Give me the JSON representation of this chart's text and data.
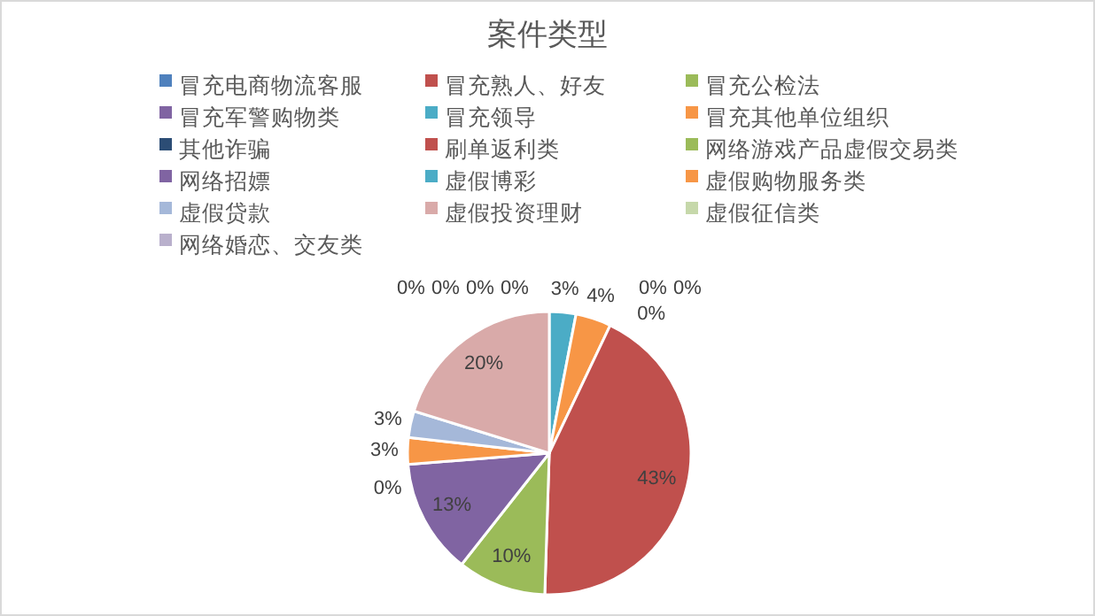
{
  "chart_data": {
    "type": "pie",
    "title": "案件类型",
    "categories": [
      "冒充电商物流客服",
      "冒充熟人、好友",
      "冒充公检法",
      "冒充军警购物类",
      "冒充领导",
      "冒充其他单位组织",
      "其他诈骗",
      "刷单返利类",
      "网络游戏产品虚假交易类",
      "网络招嫖",
      "虚假博彩",
      "虚假购物服务类",
      "虚假贷款",
      "虚假投资理财",
      "虚假征信类",
      "网络婚恋、交友类"
    ],
    "values": [
      0,
      0,
      0,
      0,
      3,
      4,
      0,
      43,
      10,
      13,
      0,
      3,
      3,
      20,
      0,
      0
    ],
    "colors": [
      "#4f81bd",
      "#c0504d",
      "#9bbb59",
      "#8064a2",
      "#4bacc6",
      "#f79646",
      "#2c4d75",
      "#c0504d",
      "#9bbb59",
      "#8064a2",
      "#4bacc6",
      "#f79646",
      "#a5b8d9",
      "#d9aaa9",
      "#c6d8aa",
      "#b9b0cc"
    ],
    "value_labels": [
      "0%",
      "0%",
      "0%",
      "0%",
      "3%",
      "4%",
      "0%",
      "43%",
      "10%",
      "13%",
      "0%",
      "3%",
      "3%",
      "20%",
      "0%",
      "0%"
    ],
    "legend": "top"
  }
}
